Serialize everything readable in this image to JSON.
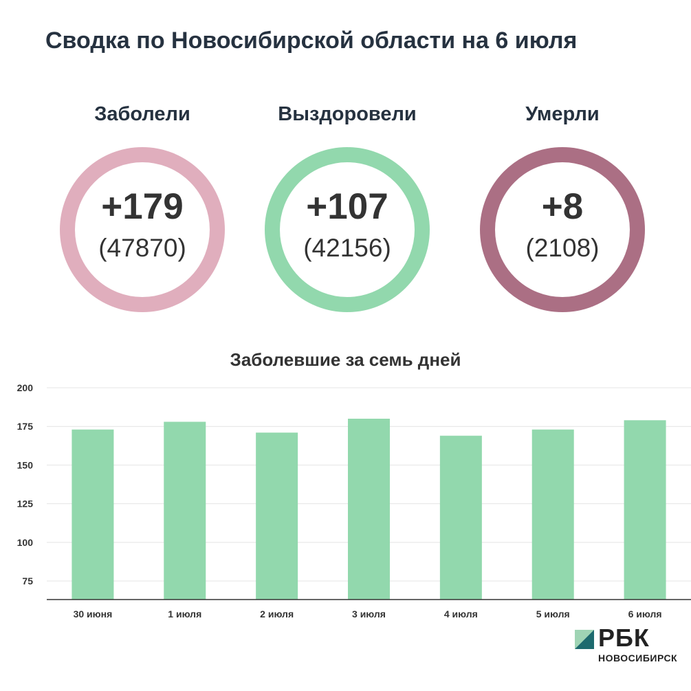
{
  "title": "Сводка по Новосибирской области на 6 июля",
  "stats": [
    {
      "label": "Заболели",
      "delta": "+179",
      "total": "(47870)",
      "color": "#e0aebd"
    },
    {
      "label": "Выздоровели",
      "delta": "+107",
      "total": "(42156)",
      "color": "#92d8ad"
    },
    {
      "label": "Умерли",
      "delta": "+8",
      "total": "(2108)",
      "color": "#ab6f84"
    }
  ],
  "chart_title": "Заболевшие за семь дней",
  "chart_data": {
    "type": "bar",
    "title": "Заболевшие за семь дней",
    "categories": [
      "30 июня",
      "1 июля",
      "2 июля",
      "3 июля",
      "4 июля",
      "5 июля",
      "6 июля"
    ],
    "values": [
      173,
      178,
      171,
      180,
      169,
      173,
      179
    ],
    "ylim": [
      63,
      200
    ],
    "yticks": [
      75,
      100,
      125,
      150,
      175,
      200
    ],
    "grid": true,
    "bar_color": "#92d8ad"
  },
  "logo": {
    "word": "РБК",
    "city": "НОВОСИБИРСК",
    "colors": [
      "#9fd4b4",
      "#1d6a6e"
    ]
  }
}
